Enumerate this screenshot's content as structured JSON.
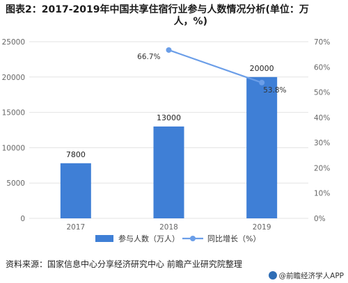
{
  "title_line1": "图表2：2017-2019年中国共享住宿行业参与人数情况分析(单位：万",
  "title_line2": "人，%)",
  "source": "资料来源：国家信息中心分享经济研究中心 前瞻产业研究院整理",
  "brand": "@前瞻经济学人APP",
  "colors": {
    "bar": "#3f7fd6",
    "line": "#6b9ee8",
    "grid": "#e3e3e3",
    "axis_text": "#666666"
  },
  "chart_data": {
    "type": "bar",
    "categories": [
      "2017",
      "2018",
      "2019"
    ],
    "series": [
      {
        "name": "参与人数（万人）",
        "type": "bar",
        "axis": "left",
        "values": [
          7800,
          13000,
          20000
        ],
        "labels": [
          "7800",
          "13000",
          "20000"
        ]
      },
      {
        "name": "同比增长（%）",
        "type": "line",
        "axis": "right",
        "values": [
          null,
          66.7,
          53.8
        ],
        "labels": [
          "",
          "66.7%",
          "53.8%"
        ]
      }
    ],
    "y_left": {
      "min": 0,
      "max": 25000,
      "ticks": [
        "0",
        "5000",
        "10000",
        "15000",
        "20000",
        "25000"
      ]
    },
    "y_right": {
      "min": 0,
      "max": 70,
      "ticks": [
        "0%",
        "10%",
        "20%",
        "30%",
        "40%",
        "50%",
        "60%",
        "70%"
      ]
    },
    "grid": true,
    "legend_position": "bottom"
  }
}
